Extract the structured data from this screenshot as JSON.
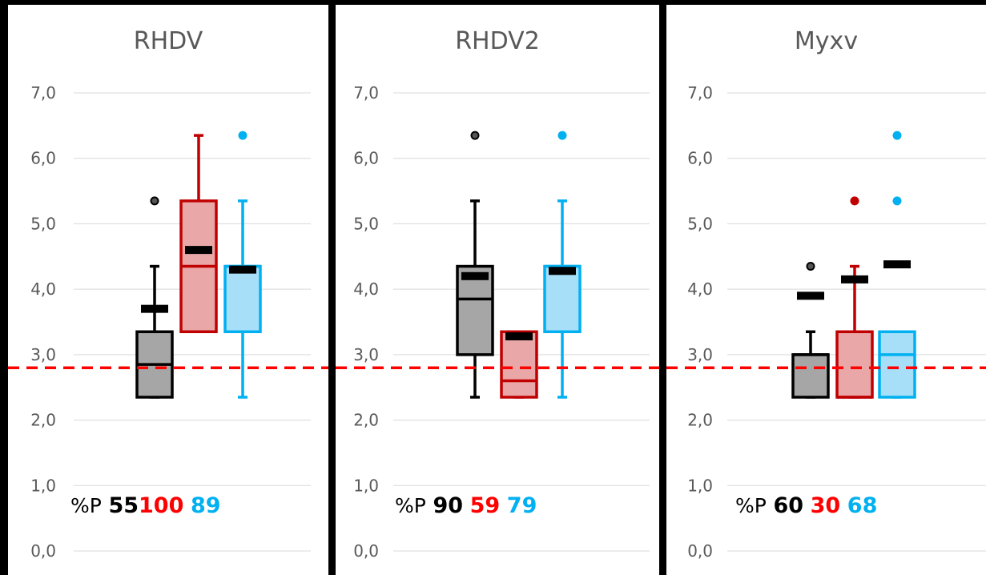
{
  "pct_prefix": "%P",
  "colors": {
    "black_fill": "#a6a6a6",
    "black_stroke": "#000000",
    "red_fill": "#eaa7a7",
    "red_stroke": "#c00000",
    "blue_fill": "#a8dff8",
    "blue_stroke": "#00b0f0",
    "threshold": "#ff0000",
    "pct_black": "#000000",
    "pct_red": "#ff0000",
    "pct_blue": "#00b0f0"
  },
  "chart_data": [
    {
      "type": "box",
      "title": "RHDV",
      "ylim": [
        0,
        7
      ],
      "yticks": [
        "0,0",
        "1,0",
        "2,0",
        "3,0",
        "4,0",
        "5,0",
        "6,0",
        "7,0"
      ],
      "threshold": 2.8,
      "series": [
        {
          "color": "black",
          "min": 2.35,
          "q1": 2.35,
          "median": 2.85,
          "q3": 3.35,
          "max": 4.35,
          "mean": 3.7,
          "outliers": [
            5.35
          ]
        },
        {
          "color": "red",
          "min": 3.35,
          "q1": 3.35,
          "median": 4.35,
          "q3": 5.35,
          "max": 6.35,
          "mean": 4.6,
          "outliers": []
        },
        {
          "color": "blue",
          "min": 2.35,
          "q1": 3.35,
          "median": 4.35,
          "q3": 4.35,
          "max": 5.35,
          "mean": 4.3,
          "outliers": [
            6.35
          ]
        }
      ],
      "percents": [
        "55",
        "100",
        "89"
      ]
    },
    {
      "type": "box",
      "title": "RHDV2",
      "ylim": [
        0,
        7
      ],
      "yticks": [
        "0,0",
        "1,0",
        "2,0",
        "3,0",
        "4,0",
        "5,0",
        "6,0",
        "7,0"
      ],
      "threshold": 2.8,
      "series": [
        {
          "color": "black",
          "min": 2.35,
          "q1": 3.0,
          "median": 3.85,
          "q3": 4.35,
          "max": 5.35,
          "mean": 4.2,
          "outliers": [
            6.35
          ]
        },
        {
          "color": "red",
          "min": 2.35,
          "q1": 2.35,
          "median": 2.6,
          "q3": 3.35,
          "max": 3.35,
          "mean": 3.28,
          "outliers": []
        },
        {
          "color": "blue",
          "min": 2.35,
          "q1": 3.35,
          "median": 4.35,
          "q3": 4.35,
          "max": 5.35,
          "mean": 4.28,
          "outliers": [
            6.35
          ]
        }
      ],
      "percents": [
        "90",
        "59",
        "79"
      ]
    },
    {
      "type": "box",
      "title": "Myxv",
      "ylim": [
        0,
        7
      ],
      "yticks": [
        "0,0",
        "1,0",
        "2,0",
        "3,0",
        "4,0",
        "5,0",
        "6,0",
        "7,0"
      ],
      "threshold": 2.8,
      "series": [
        {
          "color": "black",
          "min": 2.35,
          "q1": 2.35,
          "median": 3.0,
          "q3": 3.0,
          "max": 3.35,
          "mean": 3.9,
          "outliers": [
            4.35
          ]
        },
        {
          "color": "red",
          "min": 2.35,
          "q1": 2.35,
          "median": 2.35,
          "q3": 3.35,
          "max": 4.35,
          "mean": 4.15,
          "outliers": [
            5.35
          ]
        },
        {
          "color": "blue",
          "min": 2.35,
          "q1": 2.35,
          "median": 3.0,
          "q3": 3.35,
          "max": 3.35,
          "mean": 4.38,
          "outliers": [
            5.35,
            6.35
          ]
        }
      ],
      "percents": [
        "60",
        "30",
        "68"
      ]
    }
  ]
}
